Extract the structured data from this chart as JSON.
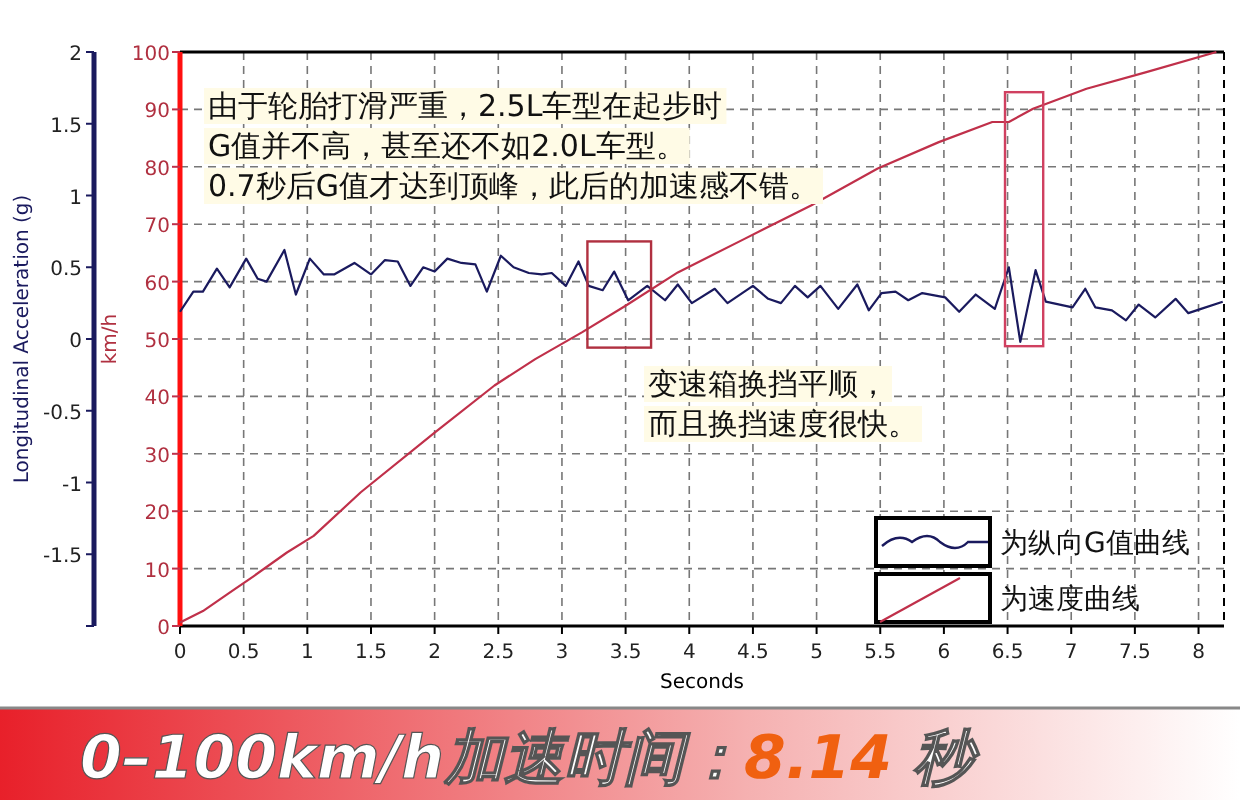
{
  "chart_data": {
    "type": "line",
    "title": "0–100km/h加速时间：8.14 秒",
    "xlabel": "Seconds",
    "ylabel": "Longitudinal Acceleration (g)",
    "y2label": "km/h",
    "annotations": [
      "由于轮胎打滑严重，2.5L车型在起步时",
      "G值并不高，甚至还不如2.0L车型。",
      "0.7秒后G值才达到顶峰，此后的加速感不错。",
      "变速箱换挡平顺，",
      "而且换挡速度很快。"
    ],
    "xlim": [
      0,
      8.2
    ],
    "xticks": [
      0,
      0.5,
      1,
      1.5,
      2,
      2.5,
      3,
      3.5,
      4,
      4.5,
      5,
      5.5,
      6,
      6.5,
      7,
      7.5,
      8
    ],
    "ylim": [
      -2,
      2
    ],
    "yticks": [
      {
        "value": -2,
        "label": null
      },
      -1.5,
      -1,
      -0.5,
      0,
      0.5,
      1,
      1.5,
      2
    ],
    "y2lim": [
      0,
      100
    ],
    "y2ticks": [
      0,
      10,
      20,
      30,
      40,
      50,
      60,
      70,
      80,
      90,
      100
    ],
    "grid": true,
    "legend": "bottom right",
    "line_style": "solid",
    "series": [
      {
        "name": "为纵向G值曲线",
        "color": "#1a1a5e",
        "x": [
          0,
          0.105,
          0.18,
          0.29,
          0.39,
          0.52,
          0.61,
          0.68,
          0.82,
          0.91,
          1.02,
          1.13,
          1.21,
          1.37,
          1.5,
          1.61,
          1.71,
          1.81,
          1.91,
          2.0,
          2.1,
          2.21,
          2.32,
          2.41,
          2.52,
          2.62,
          2.74,
          2.84,
          2.92,
          3.03,
          3.13,
          3.21,
          3.32,
          3.41,
          3.52,
          3.67,
          3.81,
          3.91,
          4.02,
          4.2,
          4.3,
          4.5,
          4.62,
          4.72,
          4.83,
          4.93,
          5.03,
          5.17,
          5.32,
          5.41,
          5.51,
          5.62,
          5.72,
          5.83,
          6.01,
          6.12,
          6.25,
          6.4,
          6.51,
          6.6,
          6.72,
          6.8,
          7.01,
          7.11,
          7.19,
          7.32,
          7.43,
          7.53,
          7.66,
          7.82,
          7.92,
          8.02,
          8.19
        ],
        "values": [
          0.19,
          0.33,
          0.33,
          0.49,
          0.36,
          0.56,
          0.42,
          0.4,
          0.62,
          0.31,
          0.56,
          0.45,
          0.45,
          0.53,
          0.45,
          0.55,
          0.54,
          0.37,
          0.5,
          0.47,
          0.56,
          0.53,
          0.52,
          0.33,
          0.58,
          0.5,
          0.46,
          0.45,
          0.46,
          0.37,
          0.54,
          0.37,
          0.34,
          0.47,
          0.27,
          0.37,
          0.27,
          0.38,
          0.25,
          0.35,
          0.25,
          0.37,
          0.28,
          0.25,
          0.37,
          0.29,
          0.37,
          0.21,
          0.38,
          0.2,
          0.32,
          0.33,
          0.27,
          0.32,
          0.29,
          0.19,
          0.31,
          0.21,
          0.5,
          -0.02,
          0.48,
          0.26,
          0.22,
          0.35,
          0.22,
          0.2,
          0.13,
          0.24,
          0.15,
          0.28,
          0.18,
          0.21,
          0.26
        ]
      },
      {
        "name": "为速度曲线",
        "color": "#c0304a",
        "axis": "y2",
        "x": [
          0,
          0.18,
          0.39,
          0.58,
          0.84,
          1.05,
          1.42,
          2.0,
          2.47,
          2.79,
          3.16,
          3.5,
          3.91,
          4.43,
          4.96,
          5.48,
          5.96,
          6.38,
          6.51,
          6.7,
          7.12,
          7.59,
          8.14
        ],
        "values": [
          0.6,
          2.6,
          5.8,
          8.7,
          12.8,
          15.7,
          23.3,
          33.7,
          41.9,
          46.5,
          51.2,
          55.8,
          61.6,
          67.4,
          73.3,
          79.7,
          84.3,
          87.8,
          87.8,
          90.1,
          93.6,
          96.5,
          100
        ]
      }
    ]
  }
}
